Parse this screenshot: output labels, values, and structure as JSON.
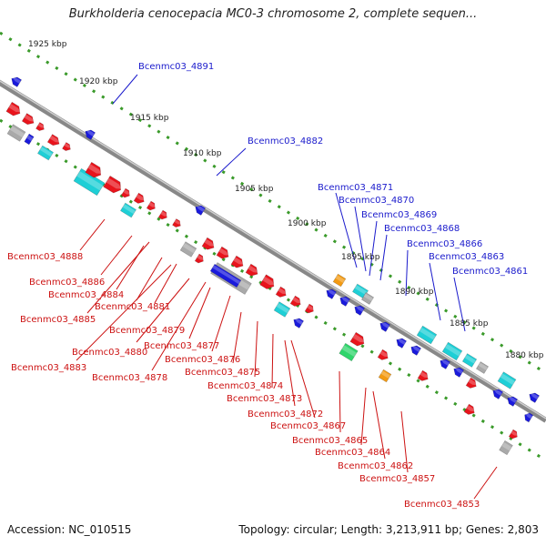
{
  "title": "Burkholderia cenocepacia MC0-3 chromosome 2, complete sequen...",
  "footer": {
    "accession": "Accession: NC_010515",
    "topology": "Topology: circular; Length: 3,213,911 bp; Genes: 2,803"
  },
  "colors": {
    "forward_gene": "#e8141c",
    "reverse_gene": "#1a1adc",
    "cyan_gene": "#1ecfd6",
    "orange_gene": "#f39a12",
    "gray_gene": "#a9a9a9",
    "green_gene": "#2fd56b",
    "axis": "#808080",
    "tick_dots": "#3a9a2a"
  },
  "scale_labels": [
    "1925 kbp",
    "1920 kbp",
    "1915 kbp",
    "1910 kbp",
    "1905 kbp",
    "1900 kbp",
    "1895 kbp",
    "1890 kbp",
    "1885 kbp",
    "1880 kbp"
  ],
  "blue_labels": [
    "Bcenmc03_4891",
    "Bcenmc03_4882",
    "Bcenmc03_4871",
    "Bcenmc03_4870",
    "Bcenmc03_4869",
    "Bcenmc03_4868",
    "Bcenmc03_4866",
    "Bcenmc03_4863",
    "Bcenmc03_4861"
  ],
  "red_labels": [
    "Bcenmc03_4888",
    "Bcenmc03_4886",
    "Bcenmc03_4884",
    "Bcenmc03_4881",
    "Bcenmc03_4885",
    "Bcenmc03_4879",
    "Bcenmc03_4877",
    "Bcenmc03_4880",
    "Bcenmc03_4876",
    "Bcenmc03_4883",
    "Bcenmc03_4878",
    "Bcenmc03_4875",
    "Bcenmc03_4874",
    "Bcenmc03_4873",
    "Bcenmc03_4872",
    "Bcenmc03_4867",
    "Bcenmc03_4865",
    "Bcenmc03_4864",
    "Bcenmc03_4862",
    "Bcenmc03_4857",
    "Bcenmc03_4853"
  ]
}
